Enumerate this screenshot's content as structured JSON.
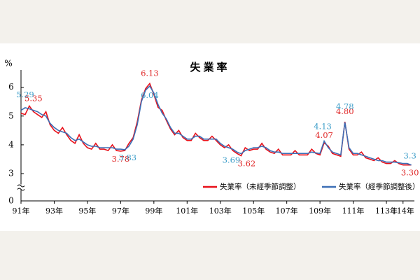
{
  "chart_data": {
    "type": "line",
    "title": "失業率",
    "y_unit": "%",
    "x": [
      91,
      91.25,
      91.5,
      91.75,
      92,
      92.25,
      92.5,
      92.75,
      93,
      93.25,
      93.5,
      93.75,
      94,
      94.25,
      94.5,
      94.75,
      95,
      95.25,
      95.5,
      95.75,
      96,
      96.25,
      96.5,
      96.75,
      97,
      97.25,
      97.5,
      97.75,
      98,
      98.25,
      98.5,
      98.75,
      99,
      99.25,
      99.5,
      99.75,
      100,
      100.25,
      100.5,
      100.75,
      101,
      101.25,
      101.5,
      101.75,
      102,
      102.25,
      102.5,
      102.75,
      103,
      103.25,
      103.5,
      103.75,
      104,
      104.25,
      104.5,
      104.75,
      105,
      105.25,
      105.5,
      105.75,
      106,
      106.25,
      106.5,
      106.75,
      107,
      107.25,
      107.5,
      107.75,
      108,
      108.25,
      108.5,
      108.75,
      109,
      109.25,
      109.5,
      109.75,
      110,
      110.25,
      110.5,
      110.75,
      111,
      111.25,
      111.5,
      111.75,
      112,
      112.25,
      112.5,
      112.75,
      113,
      113.25,
      113.5,
      113.75,
      114,
      114.25,
      114.5
    ],
    "series": [
      {
        "name": "失業率（未經季節調整）",
        "color": "#e8101a",
        "label_color": "#e02828",
        "values": [
          5.1,
          5.05,
          5.35,
          5.15,
          5.05,
          4.95,
          5.15,
          4.7,
          4.5,
          4.4,
          4.6,
          4.35,
          4.15,
          4.05,
          4.35,
          4.05,
          3.9,
          3.85,
          4.05,
          3.85,
          3.85,
          3.8,
          4.0,
          3.8,
          3.78,
          3.8,
          4.05,
          4.25,
          4.8,
          5.55,
          5.95,
          6.13,
          5.75,
          5.3,
          5.2,
          4.85,
          4.55,
          4.35,
          4.5,
          4.25,
          4.15,
          4.15,
          4.4,
          4.25,
          4.15,
          4.15,
          4.3,
          4.15,
          4.0,
          3.9,
          4.0,
          3.8,
          3.7,
          3.62,
          3.9,
          3.8,
          3.85,
          3.85,
          4.05,
          3.85,
          3.75,
          3.7,
          3.85,
          3.65,
          3.65,
          3.65,
          3.8,
          3.65,
          3.65,
          3.65,
          3.85,
          3.7,
          3.65,
          4.07,
          3.95,
          3.7,
          3.65,
          3.6,
          4.8,
          3.85,
          3.65,
          3.65,
          3.75,
          3.55,
          3.5,
          3.45,
          3.55,
          3.4,
          3.35,
          3.35,
          3.45,
          3.35,
          3.3,
          3.3,
          3.3
        ],
        "value_labels": [
          null,
          null,
          "5.35",
          null,
          null,
          null,
          null,
          null,
          null,
          null,
          null,
          null,
          null,
          null,
          null,
          null,
          null,
          null,
          null,
          null,
          null,
          null,
          null,
          null,
          "3.78",
          null,
          null,
          null,
          null,
          null,
          null,
          "6.13",
          null,
          null,
          null,
          null,
          null,
          null,
          null,
          null,
          null,
          null,
          null,
          null,
          null,
          null,
          null,
          null,
          null,
          null,
          null,
          null,
          null,
          "3.62",
          null,
          null,
          null,
          null,
          null,
          null,
          null,
          null,
          null,
          null,
          null,
          null,
          null,
          null,
          null,
          null,
          null,
          null,
          null,
          "4.07",
          null,
          null,
          null,
          null,
          "4.80",
          null,
          null,
          null,
          null,
          null,
          null,
          null,
          null,
          null,
          null,
          null,
          null,
          null,
          null,
          null,
          "3.30"
        ]
      },
      {
        "name": "失業率（經季節調整後）",
        "color": "#3d6fb6",
        "label_color": "#3a9cc8",
        "values": [
          5.2,
          5.29,
          5.25,
          5.2,
          5.15,
          5.05,
          5.0,
          4.75,
          4.6,
          4.5,
          4.45,
          4.4,
          4.25,
          4.15,
          4.2,
          4.1,
          4.0,
          3.95,
          3.95,
          3.9,
          3.9,
          3.9,
          3.9,
          3.85,
          3.85,
          3.83,
          3.95,
          4.2,
          4.7,
          5.5,
          5.9,
          6.04,
          5.8,
          5.4,
          5.1,
          4.9,
          4.6,
          4.4,
          4.4,
          4.3,
          4.2,
          4.2,
          4.3,
          4.3,
          4.2,
          4.2,
          4.2,
          4.2,
          4.05,
          3.95,
          3.9,
          3.85,
          3.75,
          3.69,
          3.8,
          3.85,
          3.9,
          3.9,
          3.95,
          3.9,
          3.8,
          3.75,
          3.75,
          3.7,
          3.7,
          3.7,
          3.7,
          3.7,
          3.7,
          3.7,
          3.75,
          3.72,
          3.7,
          4.13,
          3.9,
          3.75,
          3.7,
          3.65,
          4.78,
          3.9,
          3.7,
          3.7,
          3.65,
          3.6,
          3.55,
          3.5,
          3.45,
          3.45,
          3.4,
          3.4,
          3.4,
          3.38,
          3.35,
          3.35,
          3.3
        ],
        "value_labels": [
          null,
          "5.29",
          null,
          null,
          null,
          null,
          null,
          null,
          null,
          null,
          null,
          null,
          null,
          null,
          null,
          null,
          null,
          null,
          null,
          null,
          null,
          null,
          null,
          null,
          null,
          "3.83",
          null,
          null,
          null,
          null,
          null,
          "6.04",
          null,
          null,
          null,
          null,
          null,
          null,
          null,
          null,
          null,
          null,
          null,
          null,
          null,
          null,
          null,
          null,
          null,
          null,
          null,
          null,
          null,
          "3.69",
          null,
          null,
          null,
          null,
          null,
          null,
          null,
          null,
          null,
          null,
          null,
          null,
          null,
          null,
          null,
          null,
          null,
          null,
          null,
          "4.13",
          null,
          null,
          null,
          null,
          "4.78",
          null,
          null,
          null,
          null,
          null,
          null,
          null,
          null,
          null,
          null,
          null,
          null,
          null,
          null,
          null,
          "3.3"
        ]
      }
    ],
    "xlim": [
      91,
      114.6
    ],
    "xticks": [
      {
        "value": 91,
        "label": "91年"
      },
      {
        "value": 93,
        "label": "93年"
      },
      {
        "value": 95,
        "label": "95年"
      },
      {
        "value": 97,
        "label": "97年"
      },
      {
        "value": 99,
        "label": "99年"
      },
      {
        "value": 101,
        "label": "101年"
      },
      {
        "value": 103,
        "label": "103年"
      },
      {
        "value": 105,
        "label": "105年"
      },
      {
        "value": 107,
        "label": "107年"
      },
      {
        "value": 109,
        "label": "109年"
      },
      {
        "value": 111,
        "label": "111年"
      },
      {
        "value": 113,
        "label": "113年"
      },
      {
        "value": 114,
        "label": "114年"
      }
    ],
    "ylim": [
      0,
      6.6
    ],
    "yticks": [
      0,
      3,
      4,
      5,
      6
    ],
    "y_axis_break": true,
    "grid": false,
    "legend": "lower right"
  }
}
